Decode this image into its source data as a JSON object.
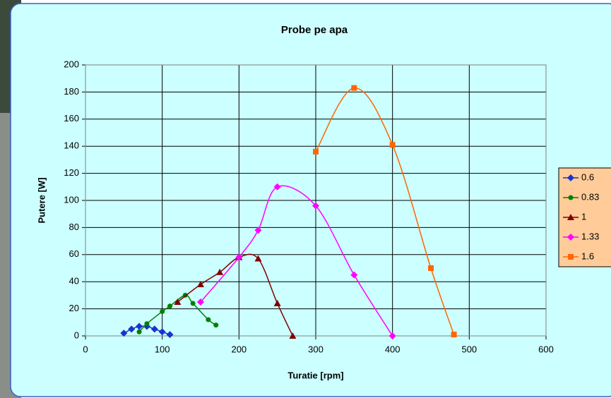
{
  "chart_data": {
    "type": "line",
    "title": "Probe pe apa",
    "xlabel": "Turatie [rpm]",
    "ylabel": "Putere [W]",
    "xlim": [
      0,
      600
    ],
    "xticks": [
      0,
      100,
      200,
      300,
      400,
      500,
      600
    ],
    "ylim": [
      0,
      200
    ],
    "yticks": [
      0,
      20,
      40,
      60,
      80,
      100,
      120,
      140,
      160,
      180,
      200
    ],
    "grid": true,
    "smooth": true,
    "legend": "right",
    "series": [
      {
        "name": "0.6",
        "color": "#1a33cc",
        "marker": "diamond",
        "x": [
          50,
          60,
          70,
          80,
          90,
          100,
          110
        ],
        "values": [
          2,
          5,
          7,
          7,
          5,
          3,
          1
        ]
      },
      {
        "name": "0.83",
        "color": "#008000",
        "marker": "circle",
        "x": [
          70,
          80,
          100,
          110,
          130,
          140,
          160,
          170
        ],
        "values": [
          3,
          9,
          18,
          22,
          30,
          24,
          12,
          8
        ]
      },
      {
        "name": "1",
        "color": "#800000",
        "marker": "triangle",
        "x": [
          120,
          150,
          175,
          200,
          225,
          250,
          270
        ],
        "values": [
          25,
          38,
          47,
          58,
          57,
          24,
          0
        ]
      },
      {
        "name": "1.33",
        "color": "#ff00ff",
        "marker": "diamond",
        "x": [
          150,
          200,
          225,
          250,
          300,
          350,
          400
        ],
        "values": [
          25,
          58,
          78,
          110,
          96,
          45,
          0
        ]
      },
      {
        "name": "1.6",
        "color": "#ff6600",
        "marker": "square",
        "x": [
          300,
          350,
          400,
          450,
          480
        ],
        "values": [
          136,
          183,
          141,
          50,
          1
        ]
      }
    ]
  }
}
